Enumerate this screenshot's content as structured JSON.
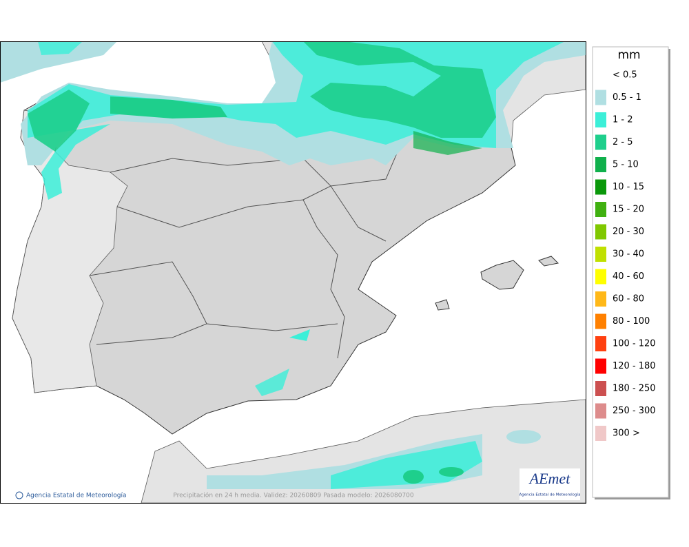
{
  "map": {
    "footer": "Precipitación en 24 h media. Validez: 20260809 Pasada modelo: 2026080700",
    "copyright": "Agencia Estatal de Meteorología",
    "logo": {
      "title": "AEmet",
      "subtitle": "Agencia Estatal de Meteorología"
    },
    "legend": {
      "title": "mm",
      "items": [
        {
          "label": "< 0.5",
          "color": "#ffffff"
        },
        {
          "label": "0.5 - 1",
          "color": "#b0dfe2"
        },
        {
          "label": "1 - 2",
          "color": "#3cefd8"
        },
        {
          "label": "2 - 5",
          "color": "#1ecf8c"
        },
        {
          "label": "5 - 10",
          "color": "#10b04c"
        },
        {
          "label": "10 - 15",
          "color": "#0a980a"
        },
        {
          "label": "15 - 20",
          "color": "#40b010"
        },
        {
          "label": "20 - 30",
          "color": "#80c800"
        },
        {
          "label": "30 - 40",
          "color": "#c0e000"
        },
        {
          "label": "40 - 60",
          "color": "#ffff00"
        },
        {
          "label": "60 - 80",
          "color": "#ffb818"
        },
        {
          "label": "80 - 100",
          "color": "#ff8000"
        },
        {
          "label": "100 - 120",
          "color": "#ff4010"
        },
        {
          "label": "120 - 180",
          "color": "#ff0000"
        },
        {
          "label": "180 - 250",
          "color": "#cc5050"
        },
        {
          "label": "250 - 300",
          "color": "#dd8c8c"
        },
        {
          "label": "300 >",
          "color": "#f0c8c8"
        }
      ]
    }
  }
}
